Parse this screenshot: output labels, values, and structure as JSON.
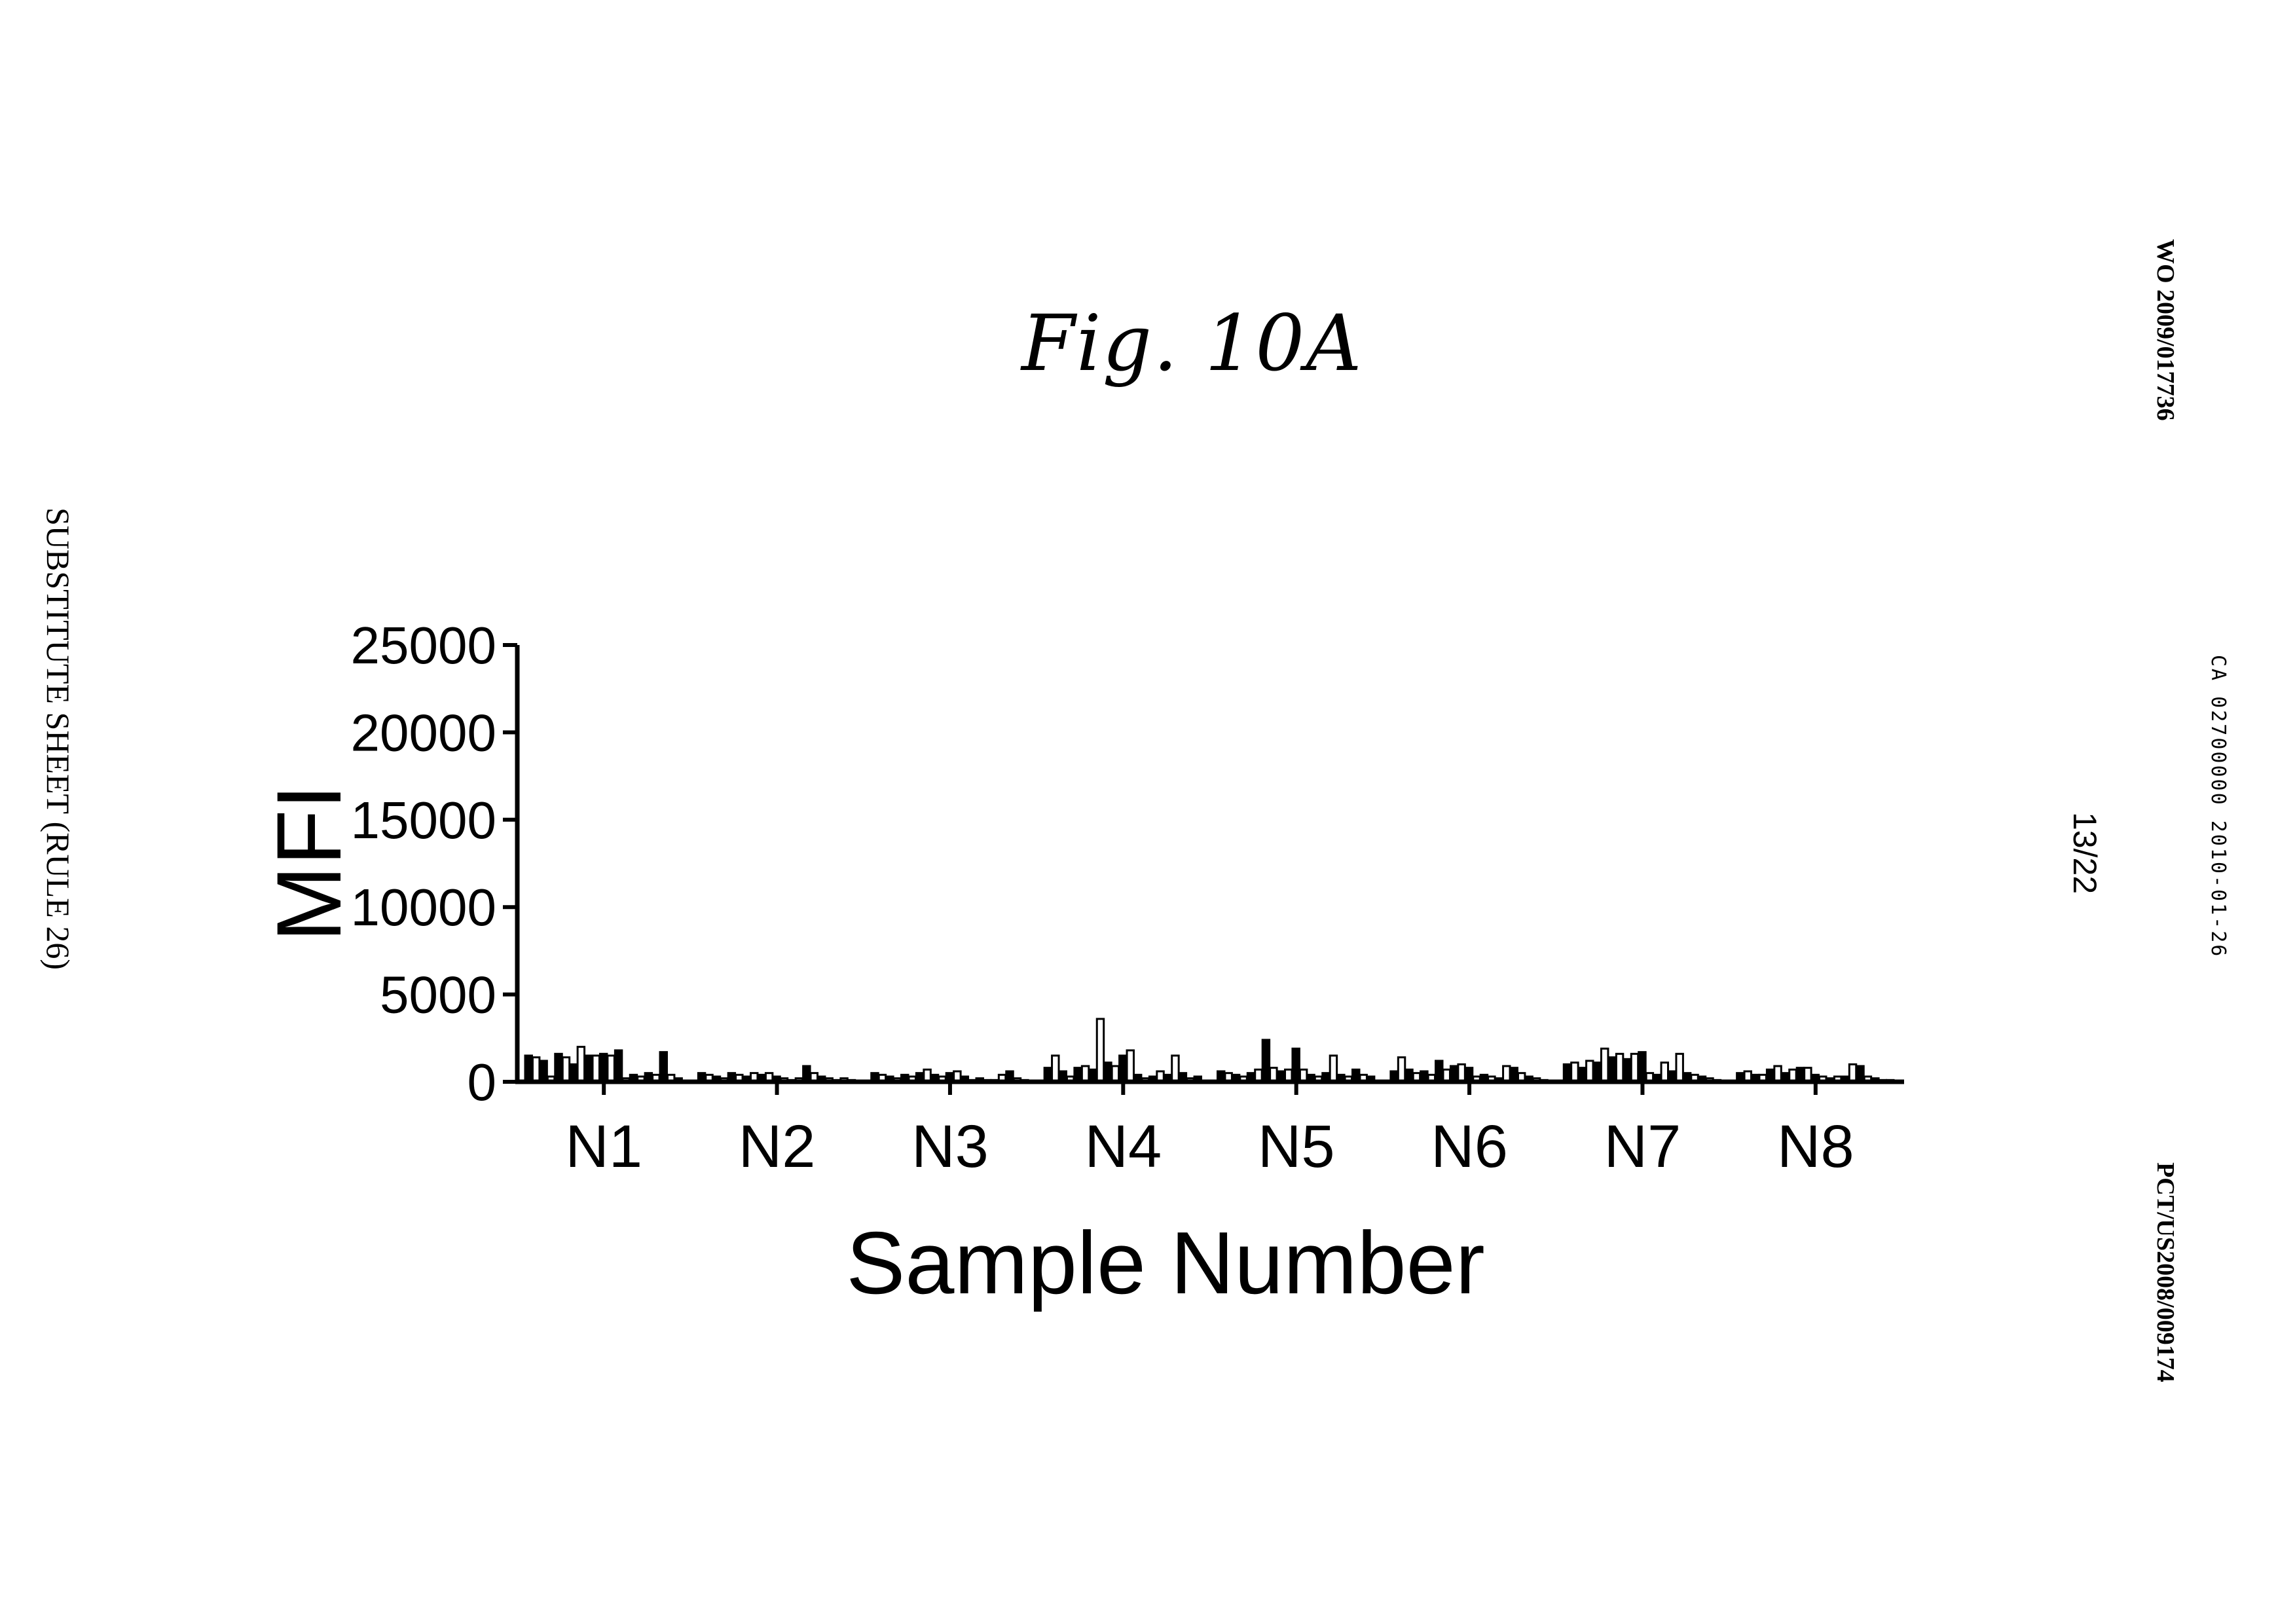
{
  "figure": {
    "title": "Fig. 10A",
    "sheet_label": "SUBSTITUTE SHEET (RULE 26)",
    "pub_number": "WO 2009/017736",
    "ca_stamp": "CA 02700000 2010-01-26",
    "page_number": "13/22",
    "pct_number": "PCT/US2008/009174"
  },
  "chart_data": {
    "type": "bar",
    "title": "",
    "xlabel": "Sample Number",
    "ylabel": "MFI",
    "ylim": [
      0,
      25000
    ],
    "yticks": [
      0,
      5000,
      10000,
      15000,
      20000,
      25000
    ],
    "ytick_labels": [
      "0",
      "5000",
      "10000",
      "15000",
      "20000",
      "25000"
    ],
    "grid": false,
    "legend": "none",
    "categories": [
      "N1",
      "N2",
      "N3",
      "N4",
      "N5",
      "N6",
      "N7",
      "N8"
    ],
    "bar_colors": [
      "#000000",
      "#ffffff"
    ],
    "values": [
      [
        1500,
        1400,
        1200,
        300,
        1600,
        1400,
        1000,
        2000,
        1500,
        1500,
        1600,
        1500,
        1800,
        200,
        400,
        300,
        500,
        400,
        1700,
        400,
        200
      ],
      [
        500,
        400,
        300,
        200,
        500,
        400,
        300,
        500,
        400,
        500,
        300,
        200,
        100,
        200,
        900,
        500,
        300,
        200,
        100,
        200,
        100
      ],
      [
        500,
        400,
        300,
        200,
        400,
        300,
        500,
        700,
        400,
        300,
        500,
        600,
        300,
        100,
        200,
        100,
        100,
        400,
        600,
        200,
        100
      ],
      [
        800,
        1500,
        600,
        300,
        800,
        900,
        700,
        3600,
        1100,
        900,
        1500,
        1800,
        400,
        200,
        300,
        600,
        400,
        1500,
        500,
        200,
        300
      ],
      [
        600,
        500,
        400,
        300,
        500,
        700,
        2400,
        800,
        600,
        700,
        1900,
        700,
        400,
        300,
        500,
        1500,
        400,
        300,
        700,
        400,
        300
      ],
      [
        600,
        1400,
        700,
        500,
        600,
        400,
        1200,
        700,
        900,
        1000,
        800,
        300,
        400,
        300,
        200,
        900,
        800,
        500,
        300,
        200,
        100
      ],
      [
        1000,
        1100,
        800,
        1200,
        1100,
        1900,
        1400,
        1600,
        1300,
        1600,
        1700,
        500,
        400,
        1100,
        600,
        1600,
        500,
        400,
        300,
        200,
        100
      ],
      [
        500,
        600,
        400,
        400,
        700,
        900,
        500,
        700,
        800,
        800,
        400,
        300,
        200,
        300,
        300,
        1000,
        900,
        300,
        200,
        100,
        100
      ]
    ]
  }
}
